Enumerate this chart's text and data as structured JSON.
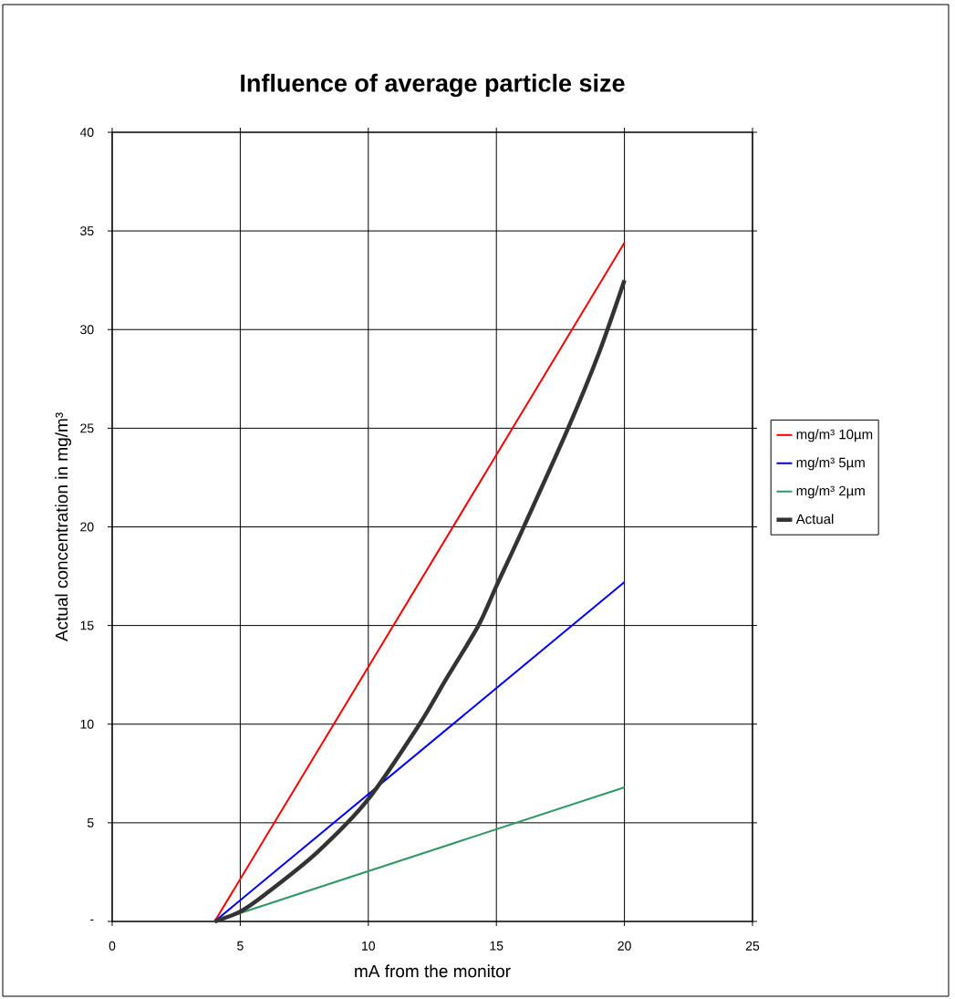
{
  "chart_data": {
    "type": "line",
    "title": "Influence of average particle size",
    "xlabel": "mA from the monitor",
    "ylabel": "Actual concentration in mg/m³",
    "xlim": [
      0,
      25
    ],
    "xticks": [
      0,
      5,
      10,
      15,
      20,
      25
    ],
    "ylim": [
      0,
      40
    ],
    "yticks": [
      {
        "value": 0,
        "label": "-"
      },
      5,
      10,
      15,
      20,
      25,
      30,
      35,
      40
    ],
    "grid": true,
    "legend": "right",
    "marker": "none",
    "line_style": "solid",
    "series": [
      {
        "name": "mg/m³ 10µm",
        "color": "#ff0000",
        "x": [
          4,
          20
        ],
        "values": [
          0,
          34.4
        ]
      },
      {
        "name": "mg/m³ 5µm",
        "color": "#0000ff",
        "x": [
          4,
          20
        ],
        "values": [
          0,
          17.2
        ]
      },
      {
        "name": "mg/m³ 2µm",
        "color": "#2e9963",
        "x": [
          4,
          20
        ],
        "values": [
          0,
          6.8
        ]
      },
      {
        "name": "Actual",
        "color": "#333333",
        "x": [
          4,
          5,
          6,
          8,
          10,
          12,
          13,
          14.3,
          15,
          16,
          17.8,
          19,
          20
        ],
        "values": [
          0,
          0.5,
          1.4,
          3.5,
          6.2,
          10,
          12.2,
          15,
          17,
          19.8,
          25,
          28.8,
          32.5
        ]
      }
    ]
  }
}
